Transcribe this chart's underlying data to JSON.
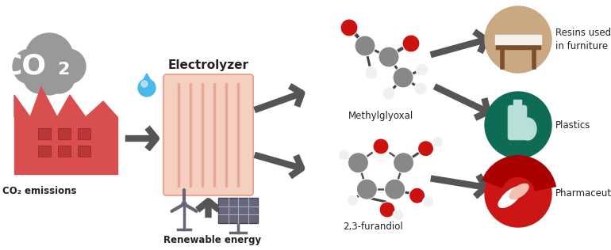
{
  "background_color": "#ffffff",
  "cloud_color": "#999999",
  "factory_color": "#d94f4f",
  "electrolyzer_color": "#f5cfc0",
  "electrolyzer_line_color": "#e8a898",
  "arrow_color": "#555555",
  "water_drop_color": "#4ab8e8",
  "mol_gray": "#888888",
  "mol_red": "#cc1111",
  "mol_white": "#f0f0f0",
  "resin_circle_color": "#c9a882",
  "resin_inner_color": "#7b4f2e",
  "plastics_circle_color": "#0e6b55",
  "pharma_circle_color": "#cc1515",
  "text_color": "#222222",
  "label_fontsize": 8.5,
  "electrolyzer_fontsize": 11,
  "co2_cloud_fontsize": 26,
  "renewable_fontsize": 8.5,
  "product_labels": [
    "Resins used\nin furniture",
    "Plastics",
    "Pharmaceuticals"
  ],
  "electrolyzer_label": "Electrolyzer",
  "renewable_label": "Renewable energy",
  "methylglyoxal_label": "Methylglyoxal",
  "furandiol_label": "2,3-furandiol",
  "co2_emissions_label": "CO₂ emissions",
  "wind_color": "#666677",
  "solar_color": "#666677"
}
